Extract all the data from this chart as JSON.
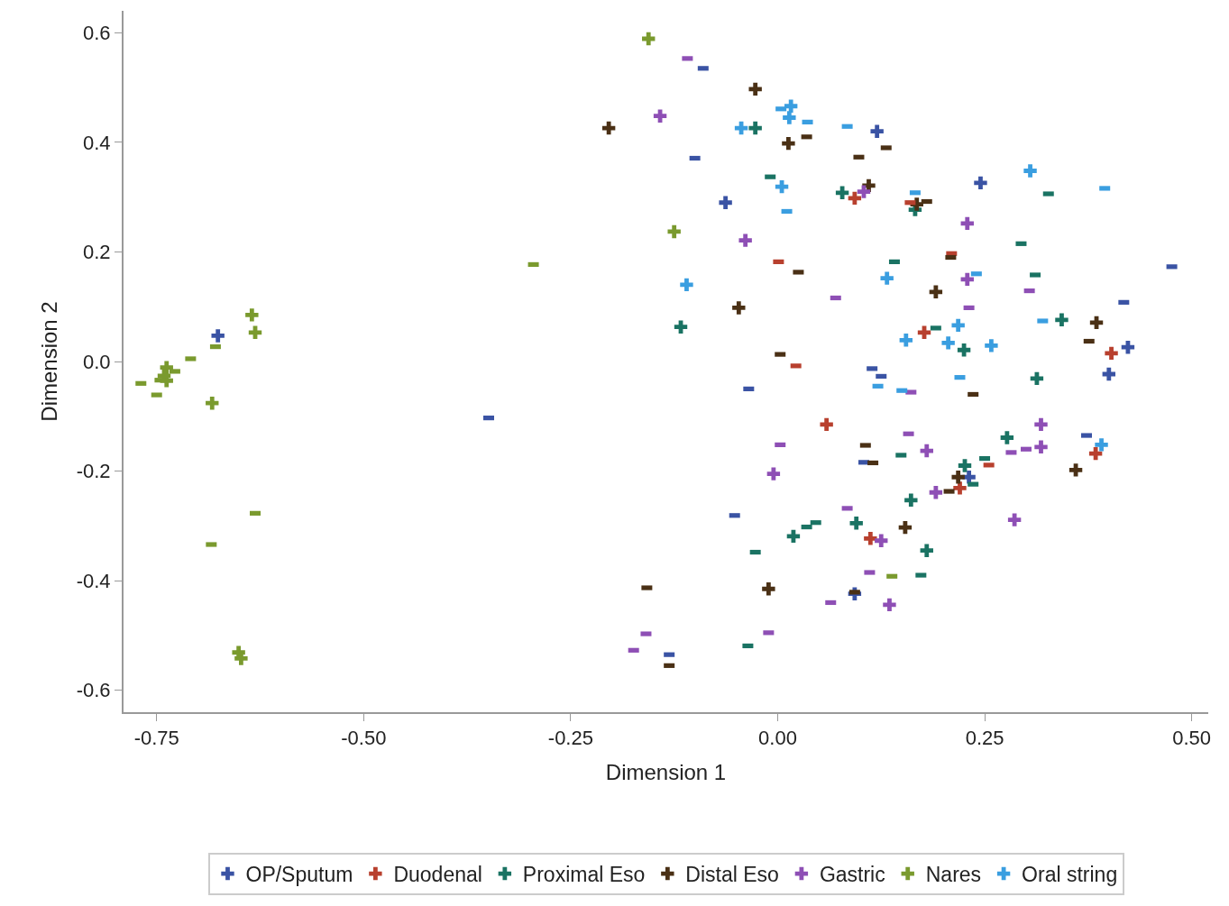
{
  "chart_data": {
    "type": "scatter",
    "xlabel": "Dimension 1",
    "ylabel": "Dimension 2",
    "xlim": [
      -0.79,
      0.52
    ],
    "ylim": [
      -0.64,
      0.64
    ],
    "xticks": [
      {
        "value": -0.75,
        "label": "-0.75"
      },
      {
        "value": -0.5,
        "label": "-0.50"
      },
      {
        "value": -0.25,
        "label": "-0.25"
      },
      {
        "value": 0,
        "label": "0.00"
      },
      {
        "value": 0.25,
        "label": "0.25"
      },
      {
        "value": 0.5,
        "label": "0.50"
      }
    ],
    "yticks": [
      {
        "value": -0.6,
        "label": "-0.6"
      },
      {
        "value": -0.4,
        "label": "-0.4"
      },
      {
        "value": -0.2,
        "label": "-0.2"
      },
      {
        "value": 0,
        "label": "0.0"
      },
      {
        "value": 0.2,
        "label": "0.2"
      },
      {
        "value": 0.4,
        "label": "0.4"
      },
      {
        "value": 0.6,
        "label": "0.6"
      }
    ],
    "grid": false,
    "legend": "bottom",
    "series": [
      {
        "name": "OP/Sputum",
        "color": "#3a53a4",
        "marker": "cross",
        "x": [
          -0.676,
          -0.063,
          0.12,
          0.245,
          0.4,
          0.423,
          0.093,
          0.231
        ],
        "values": [
          0.047,
          0.29,
          0.42,
          0.326,
          -0.023,
          0.026,
          -0.424,
          -0.211
        ]
      },
      {
        "name": "Duodenal",
        "color": "#b8402e",
        "marker": "cross",
        "x": [
          0.093,
          0.177,
          0.403,
          0.059,
          0.384,
          0.112,
          0.22
        ],
        "values": [
          0.298,
          0.053,
          0.015,
          -0.115,
          -0.168,
          -0.323,
          -0.231
        ]
      },
      {
        "name": "Proximal Eso",
        "color": "#1a7363",
        "marker": "cross",
        "x": [
          -0.027,
          0.078,
          0.166,
          -0.117,
          0.225,
          0.343,
          0.313,
          0.277,
          0.226,
          0.161,
          0.019,
          0.095,
          0.18
        ],
        "values": [
          0.426,
          0.308,
          0.277,
          0.063,
          0.021,
          0.076,
          -0.031,
          -0.139,
          -0.19,
          -0.253,
          -0.319,
          -0.295,
          -0.345
        ]
      },
      {
        "name": "Distal Eso",
        "color": "#4a3015",
        "marker": "cross",
        "x": [
          -0.204,
          -0.027,
          0.013,
          0.11,
          0.168,
          0.191,
          -0.047,
          0.385,
          0.36,
          0.218,
          0.154,
          -0.011
        ],
        "values": [
          0.426,
          0.497,
          0.398,
          0.321,
          0.287,
          0.127,
          0.098,
          0.071,
          -0.198,
          -0.211,
          -0.303,
          -0.415
        ]
      },
      {
        "name": "Gastric",
        "color": "#8e4fb5",
        "marker": "cross",
        "x": [
          -0.142,
          -0.039,
          0.104,
          0.229,
          0.229,
          0.318,
          0.318,
          0.18,
          0.191,
          0.286,
          -0.005,
          0.125,
          0.135
        ],
        "values": [
          0.448,
          0.221,
          0.31,
          0.252,
          0.15,
          -0.115,
          -0.156,
          -0.163,
          -0.239,
          -0.289,
          -0.205,
          -0.327,
          -0.444
        ]
      },
      {
        "name": "Nares",
        "color": "#7a9a2e",
        "marker": "cross",
        "x": [
          -0.156,
          -0.125,
          -0.635,
          -0.631,
          -0.683,
          -0.651,
          -0.648,
          -0.738,
          -0.741,
          -0.738
        ],
        "values": [
          0.589,
          0.237,
          0.085,
          0.053,
          -0.076,
          -0.531,
          -0.542,
          -0.011,
          -0.026,
          -0.035
        ]
      },
      {
        "name": "Oral string",
        "color": "#3a9ee0",
        "marker": "cross",
        "x": [
          0.016,
          0.014,
          -0.044,
          0.005,
          0.305,
          -0.11,
          0.132,
          0.155,
          0.218,
          0.206,
          0.258,
          0.391
        ],
        "values": [
          0.466,
          0.445,
          0.426,
          0.319,
          0.348,
          0.14,
          0.152,
          0.039,
          0.066,
          0.034,
          0.029,
          -0.152
        ]
      },
      {
        "color": "#3a53a4",
        "marker": "square",
        "x": [
          -0.349,
          -0.1,
          -0.035,
          -0.052,
          0.476,
          0.418,
          0.373,
          -0.131,
          0.114,
          0.125,
          0.104,
          -0.09
        ],
        "values": [
          -0.103,
          0.371,
          -0.05,
          -0.281,
          0.173,
          0.108,
          -0.135,
          -0.535,
          -0.013,
          -0.027,
          -0.184,
          0.535
        ]
      },
      {
        "color": "#b8402e",
        "marker": "square",
        "x": [
          0.001,
          0.022,
          0.21,
          0.255,
          0.16
        ],
        "values": [
          0.182,
          -0.008,
          0.197,
          -0.189,
          0.29
        ]
      },
      {
        "color": "#1a7363",
        "marker": "square",
        "x": [
          -0.009,
          0.141,
          0.294,
          0.327,
          0.311,
          0.191,
          0.149,
          0.25,
          0.236,
          0.173,
          -0.027,
          -0.036,
          0.035,
          0.046
        ],
        "values": [
          0.337,
          0.182,
          0.215,
          0.306,
          0.158,
          0.061,
          -0.171,
          -0.177,
          -0.224,
          -0.39,
          -0.348,
          -0.519,
          -0.302,
          -0.294
        ]
      },
      {
        "color": "#4a3015",
        "marker": "square",
        "x": [
          0.035,
          0.098,
          0.131,
          0.025,
          0.003,
          0.18,
          0.209,
          0.376,
          0.236,
          0.106,
          0.115,
          -0.158,
          -0.131,
          0.093,
          0.207
        ],
        "values": [
          0.41,
          0.373,
          0.39,
          0.163,
          0.013,
          0.292,
          0.19,
          0.037,
          -0.06,
          -0.153,
          -0.185,
          -0.413,
          -0.555,
          -0.421,
          -0.237
        ]
      },
      {
        "color": "#8e4fb5",
        "marker": "square",
        "x": [
          -0.109,
          0.07,
          0.231,
          0.304,
          0.161,
          0.158,
          0.282,
          0.3,
          0.003,
          0.084,
          0.064,
          -0.011,
          -0.159,
          -0.174,
          0.111
        ],
        "values": [
          0.553,
          0.116,
          0.098,
          0.129,
          -0.056,
          -0.132,
          -0.166,
          -0.16,
          -0.152,
          -0.268,
          -0.44,
          -0.495,
          -0.497,
          -0.527,
          -0.385
        ]
      },
      {
        "color": "#7a9a2e",
        "marker": "square",
        "x": [
          -0.295,
          -0.709,
          -0.679,
          -0.769,
          -0.75,
          -0.631,
          -0.684,
          0.138,
          -0.746,
          -0.728
        ],
        "values": [
          0.177,
          0.005,
          0.027,
          -0.04,
          -0.061,
          -0.277,
          -0.334,
          -0.392,
          -0.034,
          -0.018
        ]
      },
      {
        "color": "#3a9ee0",
        "marker": "square",
        "x": [
          0.036,
          0.084,
          0.004,
          0.011,
          0.166,
          0.395,
          0.24,
          0.32,
          0.22,
          0.121,
          0.15
        ],
        "values": [
          0.437,
          0.429,
          0.461,
          0.274,
          0.308,
          0.316,
          0.16,
          0.074,
          -0.029,
          -0.045,
          -0.053
        ]
      }
    ]
  }
}
